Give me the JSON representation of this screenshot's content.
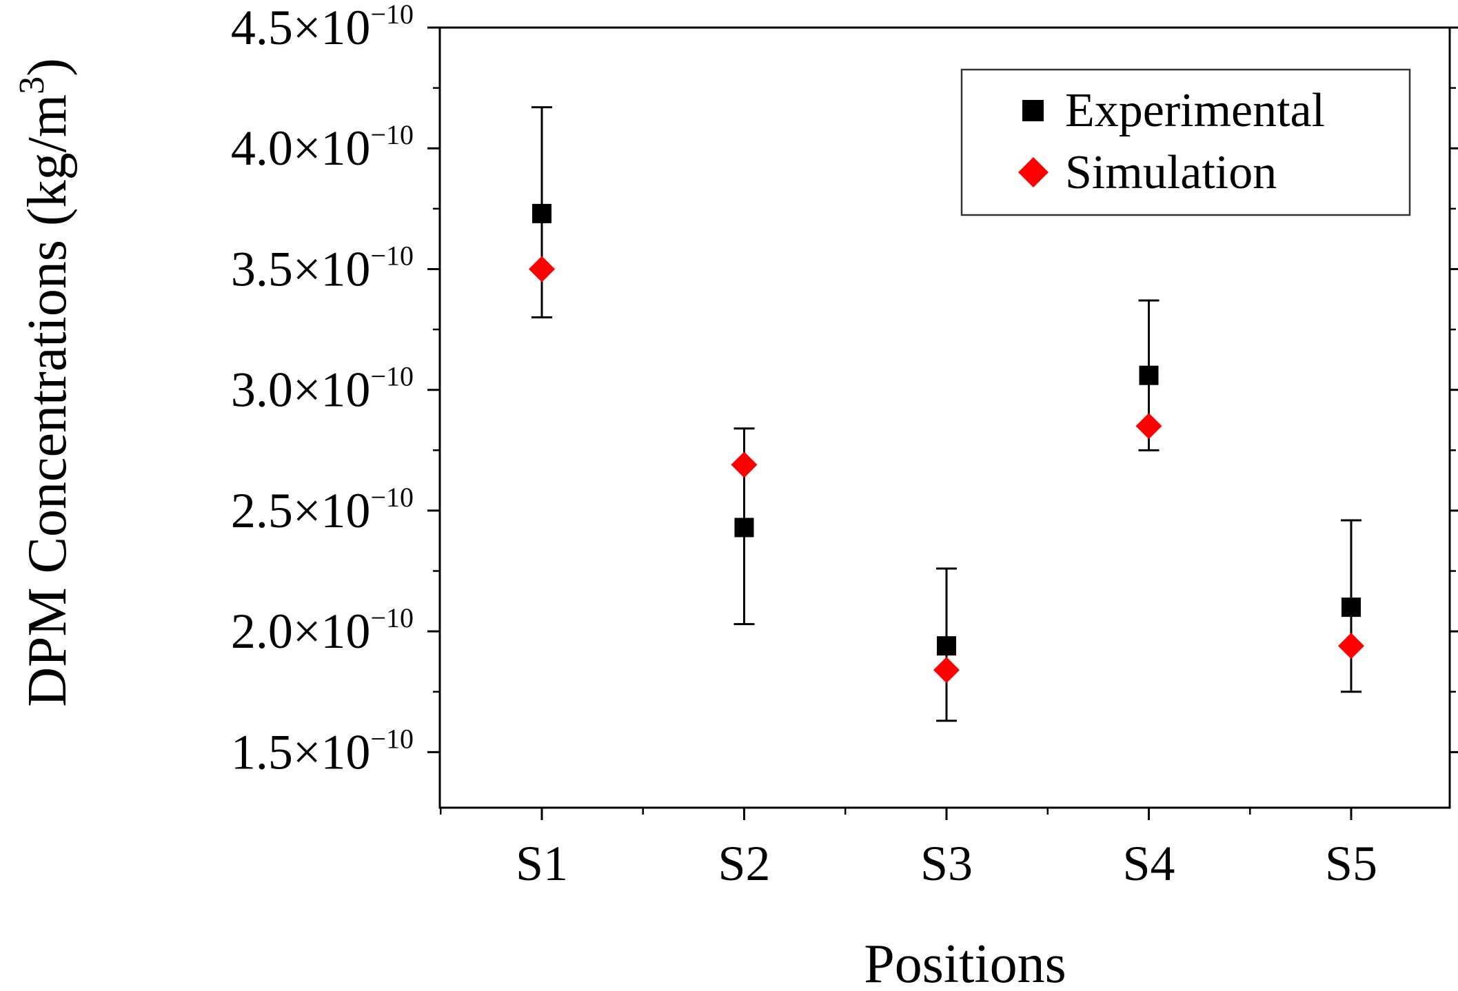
{
  "chart_data": {
    "type": "scatter",
    "title": "",
    "xlabel": "Positions",
    "ylabel_main": "DPM Concentrations (kg/m",
    "ylabel_sup": "3",
    "ylabel_close": ")",
    "categories": [
      "S1",
      "S2",
      "S3",
      "S4",
      "S5"
    ],
    "ylim": [
      1.27e-10,
      4.5e-10
    ],
    "y_ticks": [
      {
        "value": 4.5e-10,
        "mantissa": "4.5",
        "times": "×10",
        "exp": "−10"
      },
      {
        "value": 4e-10,
        "mantissa": "4.0",
        "times": "×10",
        "exp": "−10"
      },
      {
        "value": 3.5e-10,
        "mantissa": "3.5",
        "times": "×10",
        "exp": "−10"
      },
      {
        "value": 3e-10,
        "mantissa": "3.0",
        "times": "×10",
        "exp": "−10"
      },
      {
        "value": 2.5e-10,
        "mantissa": "2.5",
        "times": "×10",
        "exp": "−10"
      },
      {
        "value": 2e-10,
        "mantissa": "2.0",
        "times": "×10",
        "exp": "−10"
      },
      {
        "value": 1.5e-10,
        "mantissa": "1.5",
        "times": "×10",
        "exp": "−10"
      }
    ],
    "series": [
      {
        "name": "Experimental",
        "marker": "square",
        "color": "#000000",
        "values": [
          3.73e-10,
          2.43e-10,
          1.94e-10,
          3.06e-10,
          2.1e-10
        ],
        "error_upper": [
          4.17e-10,
          2.84e-10,
          2.26e-10,
          3.37e-10,
          2.46e-10
        ],
        "error_lower": [
          3.3e-10,
          2.03e-10,
          1.63e-10,
          2.75e-10,
          1.75e-10
        ]
      },
      {
        "name": "Simulation",
        "marker": "diamond",
        "color": "#ff0000",
        "values": [
          3.5e-10,
          2.69e-10,
          1.84e-10,
          2.85e-10,
          1.94e-10
        ]
      }
    ],
    "legend_position": "top-right",
    "grid": false
  }
}
